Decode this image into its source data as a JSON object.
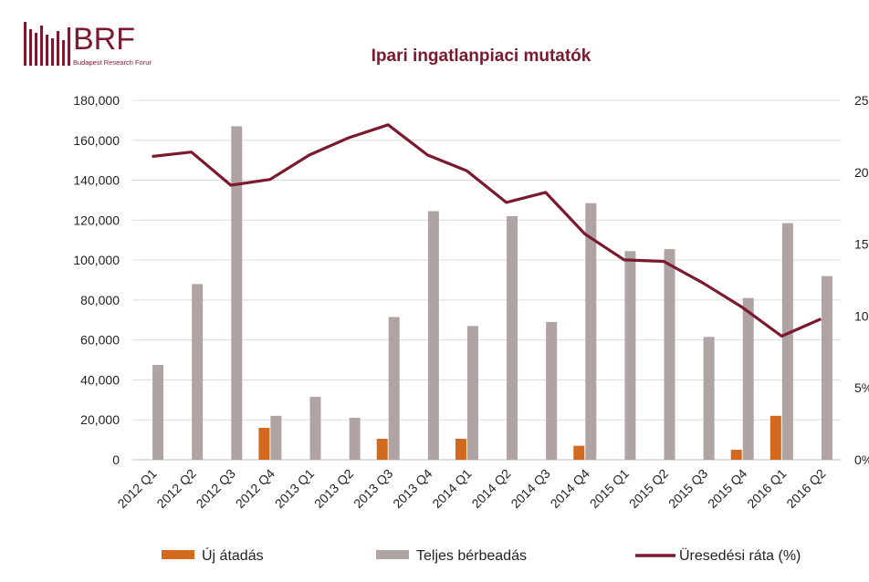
{
  "logo": {
    "wordmark": "BRF",
    "tagline": "Budapest Research Forum",
    "color": "#7b1a2e"
  },
  "chart_data": {
    "type": "bar",
    "title": "Ipari ingatlanpiaci mutatók",
    "categories": [
      "2012 Q1",
      "2012 Q2",
      "2012 Q3",
      "2012 Q4",
      "2013 Q1",
      "2013 Q2",
      "2013 Q3",
      "2013 Q4",
      "2014 Q1",
      "2014 Q2",
      "2014 Q3",
      "2014 Q4",
      "2015 Q1",
      "2015 Q2",
      "2015 Q3",
      "2015 Q4",
      "2016 Q1",
      "2016 Q2"
    ],
    "series": [
      {
        "name": "Új átadás",
        "kind": "bar",
        "axis": "left",
        "color": "#d2691e",
        "values": [
          0,
          0,
          0,
          16000,
          0,
          0,
          10500,
          0,
          10500,
          0,
          0,
          7000,
          0,
          0,
          0,
          5000,
          22000,
          0
        ]
      },
      {
        "name": "Teljes bérbeadás",
        "kind": "bar",
        "axis": "left",
        "color": "#b0a3a4",
        "values": [
          47500,
          88000,
          167000,
          22000,
          31500,
          21000,
          71500,
          124500,
          67000,
          122000,
          69000,
          128500,
          104500,
          105500,
          61500,
          81000,
          118500,
          92000
        ]
      },
      {
        "name": "Üresedési ráta (%)",
        "kind": "line",
        "axis": "right",
        "color": "#7b1a2e",
        "values": [
          21.1,
          21.4,
          19.1,
          19.5,
          21.2,
          22.4,
          23.3,
          21.2,
          20.1,
          17.9,
          18.6,
          15.7,
          13.9,
          13.8,
          12.3,
          10.6,
          8.6,
          9.8
        ]
      }
    ],
    "y_left": {
      "min": 0,
      "max": 180000,
      "ticks": [
        "0",
        "20,000",
        "40,000",
        "60,000",
        "80,000",
        "100,000",
        "120,000",
        "140,000",
        "160,000",
        "180,000"
      ]
    },
    "y_right": {
      "min": 0,
      "max": 25,
      "ticks": [
        "0%",
        "5%",
        "10",
        "15",
        "20",
        "25"
      ]
    },
    "grid": true,
    "legend_position": "bottom"
  }
}
